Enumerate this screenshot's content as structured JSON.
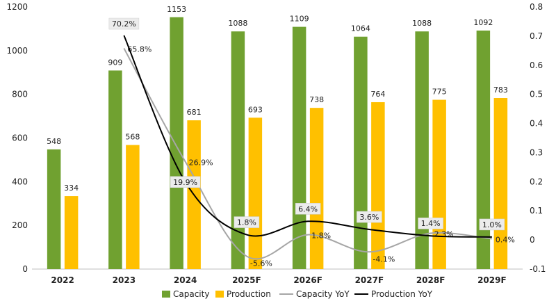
{
  "chart_data": {
    "type": "bar",
    "categories": [
      "2022",
      "2023",
      "2024",
      "2025F",
      "2026F",
      "2027F",
      "2028F",
      "2029F"
    ],
    "y_left": {
      "ylim": [
        0,
        1200
      ],
      "ticks": [
        "0",
        "200",
        "400",
        "600",
        "800",
        "1000",
        "1200"
      ]
    },
    "y_right": {
      "ylim": [
        -0.1,
        0.8
      ],
      "ticks": [
        "-0.1",
        "0",
        "0.1",
        "0.2",
        "0.3",
        "0.4",
        "0.5",
        "0.6",
        "0.7",
        "0.8"
      ]
    },
    "bar_series": [
      {
        "name": "Capacity",
        "color": "#70A130",
        "values": [
          548,
          909,
          1153,
          1088,
          1109,
          1064,
          1088,
          1092
        ],
        "labels": [
          "548",
          "909",
          "1153",
          "1088",
          "1109",
          "1064",
          "1088",
          "1092"
        ]
      },
      {
        "name": "Production",
        "color": "#FFC000",
        "values": [
          334,
          568,
          681,
          693,
          738,
          764,
          775,
          783
        ],
        "labels": [
          "334",
          "568",
          "681",
          "693",
          "738",
          "764",
          "775",
          "783"
        ]
      }
    ],
    "line_series": [
      {
        "name": "Capacity YoY",
        "color": "#A6A6A6",
        "x": [
          "2023",
          "2024",
          "2025F",
          "2026F",
          "2027F",
          "2028F",
          "2029F"
        ],
        "values": [
          0.658,
          0.269,
          -0.056,
          0.018,
          -0.041,
          0.023,
          0.004
        ],
        "labels": [
          "65.8%",
          "26.9%",
          "-5.6%",
          "1.8%",
          "-4.1%",
          "2.3%",
          "0.4%"
        ]
      },
      {
        "name": "Production YoY",
        "color": "#000000",
        "x": [
          "2023",
          "2024",
          "2025F",
          "2026F",
          "2027F",
          "2028F",
          "2029F"
        ],
        "values": [
          0.702,
          0.199,
          0.018,
          0.064,
          0.036,
          0.014,
          0.01
        ],
        "labels": [
          "70.2%",
          "19.9%",
          "1.8%",
          "6.4%",
          "3.6%",
          "1.4%",
          "1.0%"
        ]
      }
    ],
    "legend": {
      "placement": "bottom",
      "items": [
        "Capacity",
        "Production",
        "Capacity YoY",
        "Production YoY"
      ]
    },
    "grid": false
  }
}
